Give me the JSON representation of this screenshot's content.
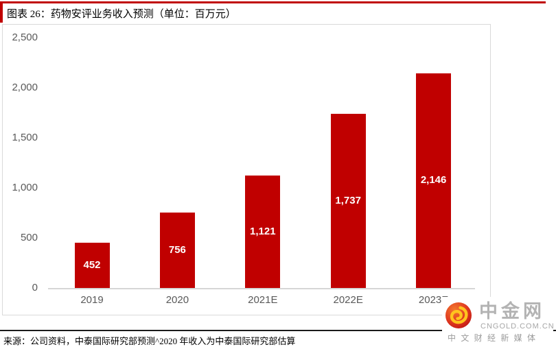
{
  "header": {
    "title": "图表 26：药物安评业务收入预测（单位：百万元）"
  },
  "chart_data": {
    "type": "bar",
    "title": "药物安评业务收入预测",
    "unit": "百万元",
    "categories": [
      "2019",
      "2020",
      "2021E",
      "2022E",
      "2023E"
    ],
    "values": [
      452,
      756,
      1121,
      1737,
      2146
    ],
    "value_labels": [
      "452",
      "756",
      "1,121",
      "1,737",
      "2,146"
    ],
    "ylim": [
      0,
      2500
    ],
    "y_ticks": [
      {
        "label": "2,500",
        "value": 2500
      },
      {
        "label": "2,000",
        "value": 2000
      },
      {
        "label": "1,500",
        "value": 1500
      },
      {
        "label": "1,000",
        "value": 1000
      },
      {
        "label": "500",
        "value": 500
      },
      {
        "label": "0",
        "value": 0
      }
    ],
    "grid": false,
    "legend_position": "none",
    "bar_color": "#C00000",
    "value_label_position": "center-inside",
    "value_label_color": "#FFFFFF"
  },
  "footer": {
    "source": "来源：公司资料，中泰国际研究部预测^2020 年收入为中泰国际研究部估算"
  },
  "watermark": {
    "name": "中金网",
    "domain": "CNGOLD.COM.CN",
    "tagline": "中 文 财 经 新 媒 体",
    "logo": "cngold-flame-swirl-icon"
  },
  "colors": {
    "accent_red": "#C00000",
    "frame_border": "#D9D9D9",
    "axis_line": "#D6D6D6",
    "tick_text": "#595959",
    "divider_black": "#1A1A1A",
    "watermark_gray": "#B3B3B3"
  }
}
